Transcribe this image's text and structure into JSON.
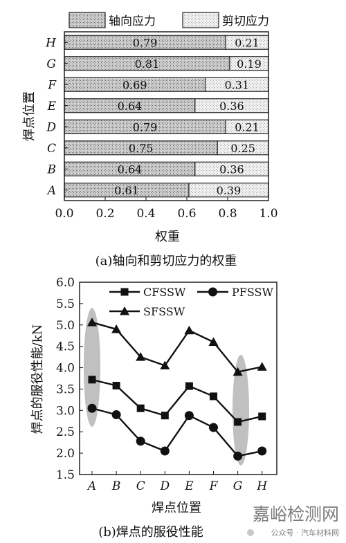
{
  "chart_data": [
    {
      "type": "bar",
      "stacked": true,
      "orientation": "horizontal",
      "categories": [
        "A",
        "B",
        "C",
        "D",
        "E",
        "F",
        "G",
        "H"
      ],
      "series": [
        {
          "name": "轴向应力",
          "values": [
            0.61,
            0.64,
            0.75,
            0.79,
            0.64,
            0.69,
            0.81,
            0.79
          ]
        },
        {
          "name": "剪切应力",
          "values": [
            0.39,
            0.36,
            0.25,
            0.21,
            0.36,
            0.31,
            0.19,
            0.21
          ]
        }
      ],
      "xlabel": "权重",
      "ylabel": "焊点位置",
      "xlim": [
        0,
        1.0
      ],
      "xticks": [
        "0.0",
        "0.2",
        "0.4",
        "0.6",
        "0.8",
        "1.0"
      ],
      "legend_position": "top",
      "caption": "(a)轴向和剪切应力的权重"
    },
    {
      "type": "line",
      "categories": [
        "A",
        "B",
        "C",
        "D",
        "E",
        "F",
        "G",
        "H"
      ],
      "series": [
        {
          "name": "CFSSW",
          "marker": "square",
          "values": [
            3.72,
            3.58,
            3.05,
            2.88,
            3.57,
            3.33,
            2.73,
            2.86
          ]
        },
        {
          "name": "PFSSW",
          "marker": "circle",
          "values": [
            3.05,
            2.9,
            2.28,
            2.05,
            2.88,
            2.6,
            1.93,
            2.05
          ]
        },
        {
          "name": "SFSSW",
          "marker": "triangle",
          "values": [
            5.06,
            4.9,
            4.25,
            4.05,
            4.87,
            4.6,
            3.9,
            4.02
          ]
        }
      ],
      "xlabel": "焊点位置",
      "ylabel": "焊点的服役性能/kN",
      "ylim": [
        1.5,
        6.0
      ],
      "yticks": [
        "1.5",
        "2.0",
        "2.5",
        "3.0",
        "3.5",
        "4.0",
        "4.5",
        "5.0",
        "5.5",
        "6.0"
      ],
      "legend_position": "top",
      "caption": "(b)焊点的服役性能"
    }
  ],
  "watermark": {
    "brand": "嘉峪检测网",
    "sub": "公众号 · 汽车材料网"
  }
}
